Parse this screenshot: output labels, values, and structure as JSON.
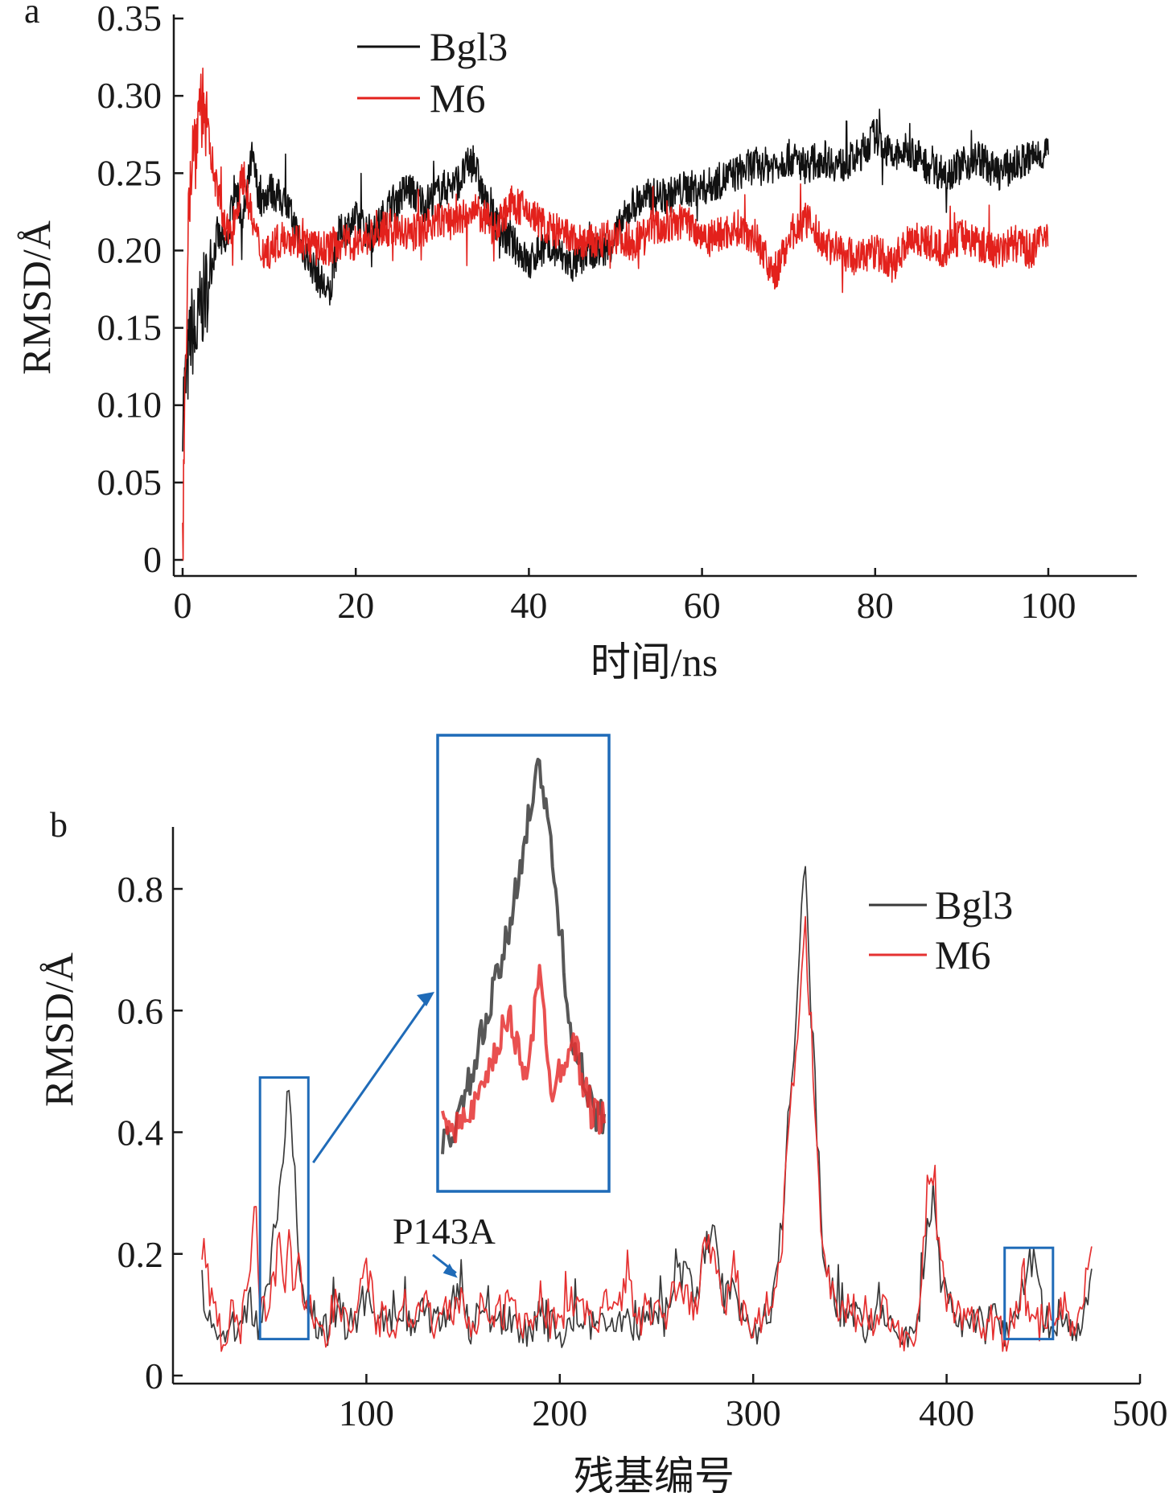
{
  "colors": {
    "bgl3": "#111111",
    "m6": "#e3211c",
    "bgl3_b": "#3a3a3a",
    "m6_b": "#e53131",
    "highlight_box": "#1f6bb8",
    "axis": "#1a1a1a"
  },
  "chart_data": [
    {
      "panel_label": "a",
      "type": "line",
      "xlabel": "时间/ns",
      "ylabel": "RMSD/Å",
      "xlim": [
        0,
        110
      ],
      "ylim": [
        0,
        0.35
      ],
      "x_ticks": [
        0,
        20,
        40,
        60,
        80,
        100
      ],
      "x_tick_labels": [
        "0",
        "20",
        "40",
        "60",
        "80",
        "100"
      ],
      "y_ticks": [
        0,
        0.05,
        0.1,
        0.15,
        0.2,
        0.25,
        0.3,
        0.35
      ],
      "y_tick_labels": [
        "0",
        "0.05",
        "0.10",
        "0.15",
        "0.20",
        "0.25",
        "0.30",
        "0.35"
      ],
      "legend_position": "top-left",
      "series": [
        {
          "name": "Bgl3",
          "color_key": "bgl3",
          "x": [
            0,
            0.5,
            1,
            1.5,
            2,
            3,
            4,
            5,
            6,
            7,
            8,
            9,
            10,
            12,
            14,
            16,
            17,
            18,
            20,
            22,
            24,
            26,
            28,
            30,
            32,
            33.5,
            35,
            37,
            39,
            40,
            41,
            43,
            45,
            47,
            49,
            50,
            52,
            54,
            56,
            58,
            60,
            62,
            64,
            66,
            68,
            70,
            72,
            74,
            76,
            78,
            80,
            82,
            84,
            86,
            88,
            90,
            92,
            94,
            96,
            98,
            100
          ],
          "y": [
            0.1,
            0.12,
            0.15,
            0.14,
            0.16,
            0.18,
            0.21,
            0.2,
            0.24,
            0.22,
            0.26,
            0.23,
            0.24,
            0.23,
            0.2,
            0.18,
            0.17,
            0.21,
            0.22,
            0.21,
            0.23,
            0.24,
            0.23,
            0.24,
            0.245,
            0.26,
            0.23,
            0.21,
            0.2,
            0.19,
            0.2,
            0.2,
            0.19,
            0.2,
            0.2,
            0.21,
            0.23,
            0.235,
            0.235,
            0.24,
            0.24,
            0.245,
            0.25,
            0.255,
            0.255,
            0.26,
            0.255,
            0.26,
            0.255,
            0.26,
            0.275,
            0.26,
            0.265,
            0.255,
            0.25,
            0.255,
            0.26,
            0.25,
            0.255,
            0.26,
            0.265
          ]
        },
        {
          "name": "M6",
          "color_key": "m6",
          "x": [
            0,
            0.3,
            0.6,
            1,
            1.5,
            2,
            2.5,
            3,
            4,
            5,
            6,
            7,
            8,
            9,
            10,
            12,
            14,
            16,
            18,
            20,
            22,
            24,
            26,
            28,
            30,
            32,
            34,
            36,
            38,
            40,
            42,
            44,
            46,
            48,
            50,
            52,
            54,
            56,
            58,
            60,
            62,
            64,
            66,
            67,
            68,
            69,
            70,
            72,
            74,
            76,
            78,
            80,
            82,
            84,
            86,
            88,
            90,
            92,
            94,
            96,
            98,
            100
          ],
          "y": [
            0.0,
            0.1,
            0.22,
            0.26,
            0.27,
            0.3,
            0.29,
            0.27,
            0.24,
            0.21,
            0.22,
            0.25,
            0.22,
            0.2,
            0.2,
            0.21,
            0.205,
            0.2,
            0.205,
            0.205,
            0.21,
            0.215,
            0.21,
            0.215,
            0.22,
            0.22,
            0.225,
            0.215,
            0.23,
            0.225,
            0.215,
            0.21,
            0.205,
            0.205,
            0.21,
            0.205,
            0.215,
            0.215,
            0.22,
            0.21,
            0.21,
            0.215,
            0.21,
            0.2,
            0.185,
            0.19,
            0.21,
            0.22,
            0.205,
            0.2,
            0.195,
            0.2,
            0.19,
            0.21,
            0.205,
            0.2,
            0.21,
            0.205,
            0.2,
            0.205,
            0.2,
            0.21
          ]
        }
      ]
    },
    {
      "panel_label": "b",
      "type": "line",
      "xlabel": "残基编号",
      "ylabel": "RMSD/Å",
      "xlim": [
        0,
        500
      ],
      "ylim": [
        0,
        0.9
      ],
      "x_ticks": [
        100,
        200,
        300,
        400,
        500
      ],
      "x_tick_labels": [
        "100",
        "200",
        "300",
        "400",
        "500"
      ],
      "y_ticks": [
        0,
        0.2,
        0.4,
        0.6,
        0.8
      ],
      "y_tick_labels": [
        "0",
        "0.2",
        "0.4",
        "0.6",
        "0.8"
      ],
      "legend_position": "top-right",
      "annotation": {
        "text": "P143A",
        "target_x": 148,
        "target_y": 0.15
      },
      "highlight_ranges": [
        {
          "x": [
            45,
            70
          ],
          "y": [
            0.06,
            0.49
          ]
        },
        {
          "x": [
            430,
            455
          ],
          "y": [
            0.06,
            0.21
          ]
        }
      ],
      "inset": {
        "source_range": [
          45,
          70
        ],
        "ylim": [
          0.06,
          0.49
        ]
      },
      "series": [
        {
          "name": "Bgl3",
          "color_key": "bgl3_b",
          "x": [
            15,
            20,
            25,
            30,
            35,
            40,
            45,
            48,
            52,
            55,
            58,
            60,
            62,
            65,
            68,
            72,
            75,
            80,
            85,
            90,
            95,
            100,
            105,
            110,
            115,
            120,
            125,
            130,
            135,
            140,
            145,
            148,
            152,
            155,
            160,
            165,
            170,
            175,
            180,
            185,
            190,
            195,
            200,
            205,
            210,
            215,
            220,
            225,
            230,
            235,
            240,
            245,
            250,
            255,
            260,
            265,
            270,
            275,
            280,
            285,
            290,
            295,
            300,
            305,
            310,
            315,
            318,
            321,
            324,
            327,
            330,
            333,
            336,
            340,
            345,
            350,
            355,
            360,
            365,
            370,
            375,
            380,
            385,
            390,
            393,
            396,
            400,
            405,
            410,
            415,
            420,
            425,
            430,
            435,
            440,
            443,
            446,
            450,
            455,
            460,
            465,
            470,
            475
          ],
          "y": [
            0.14,
            0.1,
            0.06,
            0.09,
            0.07,
            0.12,
            0.08,
            0.12,
            0.22,
            0.3,
            0.42,
            0.49,
            0.38,
            0.2,
            0.12,
            0.1,
            0.08,
            0.07,
            0.12,
            0.07,
            0.1,
            0.13,
            0.08,
            0.09,
            0.07,
            0.1,
            0.08,
            0.11,
            0.08,
            0.1,
            0.12,
            0.15,
            0.1,
            0.07,
            0.12,
            0.08,
            0.09,
            0.1,
            0.07,
            0.08,
            0.11,
            0.08,
            0.07,
            0.09,
            0.1,
            0.08,
            0.09,
            0.1,
            0.08,
            0.09,
            0.07,
            0.1,
            0.12,
            0.08,
            0.15,
            0.17,
            0.12,
            0.21,
            0.24,
            0.12,
            0.16,
            0.09,
            0.07,
            0.1,
            0.12,
            0.25,
            0.42,
            0.52,
            0.7,
            0.84,
            0.6,
            0.4,
            0.22,
            0.15,
            0.1,
            0.12,
            0.09,
            0.08,
            0.12,
            0.1,
            0.08,
            0.06,
            0.08,
            0.25,
            0.3,
            0.18,
            0.12,
            0.1,
            0.08,
            0.1,
            0.08,
            0.09,
            0.07,
            0.1,
            0.15,
            0.2,
            0.17,
            0.1,
            0.08,
            0.09,
            0.07,
            0.1,
            0.16
          ]
        },
        {
          "name": "M6",
          "color_key": "m6_b",
          "x": [
            15,
            20,
            25,
            30,
            35,
            40,
            42,
            45,
            48,
            52,
            55,
            58,
            60,
            62,
            65,
            68,
            72,
            75,
            80,
            85,
            90,
            95,
            100,
            105,
            110,
            115,
            120,
            125,
            130,
            135,
            140,
            145,
            148,
            152,
            155,
            160,
            165,
            170,
            175,
            180,
            185,
            190,
            195,
            200,
            205,
            210,
            215,
            220,
            225,
            230,
            235,
            240,
            245,
            250,
            255,
            260,
            265,
            270,
            275,
            280,
            285,
            290,
            295,
            300,
            305,
            310,
            315,
            318,
            321,
            324,
            327,
            330,
            333,
            336,
            340,
            345,
            350,
            355,
            360,
            365,
            370,
            375,
            380,
            385,
            390,
            393,
            396,
            400,
            405,
            410,
            415,
            420,
            425,
            430,
            435,
            440,
            443,
            446,
            450,
            455,
            460,
            465,
            470,
            475
          ],
          "y": [
            0.22,
            0.12,
            0.06,
            0.1,
            0.08,
            0.18,
            0.3,
            0.12,
            0.1,
            0.15,
            0.22,
            0.16,
            0.26,
            0.14,
            0.2,
            0.12,
            0.1,
            0.09,
            0.07,
            0.14,
            0.08,
            0.1,
            0.18,
            0.09,
            0.1,
            0.08,
            0.12,
            0.09,
            0.13,
            0.08,
            0.11,
            0.09,
            0.12,
            0.1,
            0.07,
            0.13,
            0.09,
            0.1,
            0.12,
            0.08,
            0.09,
            0.13,
            0.09,
            0.08,
            0.1,
            0.12,
            0.09,
            0.1,
            0.12,
            0.09,
            0.18,
            0.08,
            0.12,
            0.1,
            0.09,
            0.15,
            0.14,
            0.1,
            0.2,
            0.22,
            0.1,
            0.18,
            0.09,
            0.07,
            0.1,
            0.12,
            0.23,
            0.4,
            0.48,
            0.62,
            0.74,
            0.55,
            0.35,
            0.2,
            0.14,
            0.1,
            0.12,
            0.09,
            0.08,
            0.11,
            0.1,
            0.08,
            0.06,
            0.08,
            0.28,
            0.32,
            0.2,
            0.12,
            0.1,
            0.08,
            0.1,
            0.08,
            0.09,
            0.06,
            0.1,
            0.12,
            0.1,
            0.08,
            0.09,
            0.08,
            0.12,
            0.08,
            0.12,
            0.2
          ]
        }
      ]
    }
  ]
}
